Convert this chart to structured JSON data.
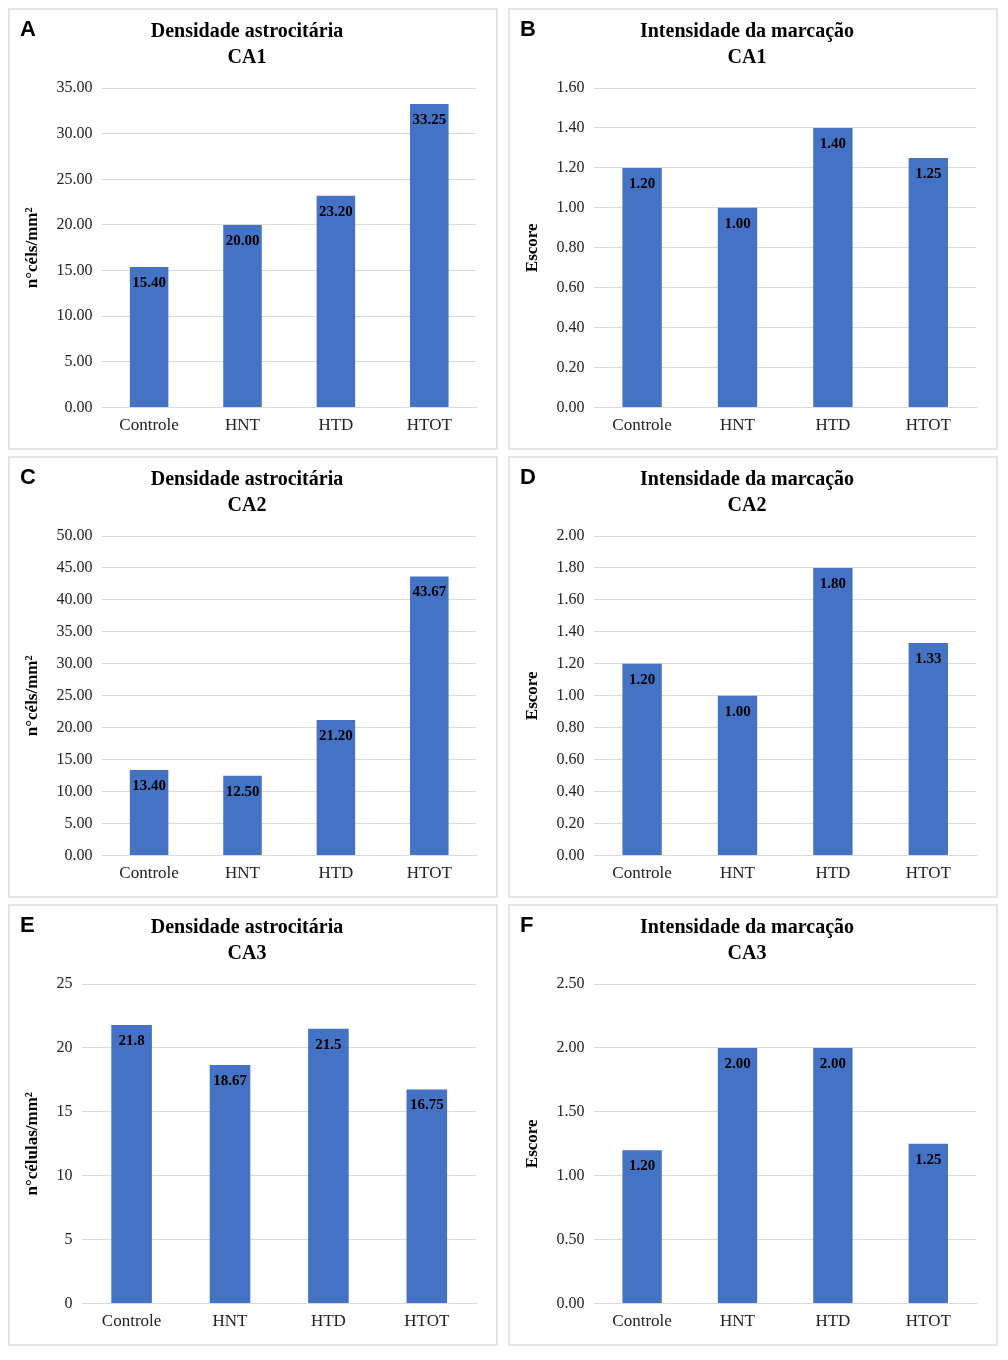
{
  "chart_data": [
    {
      "type": "bar",
      "title": "Densidade astrocitária",
      "subtitle": "CA1",
      "ylabel": "n°céls/mm²",
      "annotations": [
        "A"
      ],
      "categories": [
        "Controle",
        "HNT",
        "HTD",
        "HTOT"
      ],
      "values": [
        15.4,
        20.0,
        23.2,
        33.25
      ],
      "value_labels": [
        "15.40",
        "20.00",
        "23.20",
        "33.25"
      ],
      "color": "#4472c4",
      "ylim": [
        0,
        35
      ],
      "yticks": [
        {
          "value": 0,
          "label": "0.00"
        },
        {
          "value": 5,
          "label": "5.00"
        },
        {
          "value": 10,
          "label": "10.00"
        },
        {
          "value": 15,
          "label": "15.00"
        },
        {
          "value": 20,
          "label": "20.00"
        },
        {
          "value": 25,
          "label": "25.00"
        },
        {
          "value": 30,
          "label": "30.00"
        },
        {
          "value": 35,
          "label": "35.00"
        }
      ],
      "grid": "y"
    },
    {
      "type": "bar",
      "title": "Intensidade da marcação",
      "subtitle": "CA1",
      "ylabel": "Escore",
      "annotations": [
        "B"
      ],
      "categories": [
        "Controle",
        "HNT",
        "HTD",
        "HTOT"
      ],
      "values": [
        1.2,
        1.0,
        1.4,
        1.25
      ],
      "value_labels": [
        "1.20",
        "1.00",
        "1.40",
        "1.25"
      ],
      "color": "#4472c4",
      "ylim": [
        0,
        1.6
      ],
      "yticks": [
        {
          "value": 0,
          "label": "0.00"
        },
        {
          "value": 0.2,
          "label": "0.20"
        },
        {
          "value": 0.4,
          "label": "0.40"
        },
        {
          "value": 0.6,
          "label": "0.60"
        },
        {
          "value": 0.8,
          "label": "0.80"
        },
        {
          "value": 1,
          "label": "1.00"
        },
        {
          "value": 1.2,
          "label": "1.20"
        },
        {
          "value": 1.4,
          "label": "1.40"
        },
        {
          "value": 1.6,
          "label": "1.60"
        }
      ],
      "grid": "y"
    },
    {
      "type": "bar",
      "title": "Densidade astrocitária",
      "subtitle": "CA2",
      "ylabel": "n°céls/mm²",
      "annotations": [
        "C"
      ],
      "categories": [
        "Controle",
        "HNT",
        "HTD",
        "HTOT"
      ],
      "values": [
        13.4,
        12.5,
        21.2,
        43.67
      ],
      "value_labels": [
        "13.40",
        "12.50",
        "21.20",
        "43.67"
      ],
      "color": "#4472c4",
      "ylim": [
        0,
        50
      ],
      "yticks": [
        {
          "value": 0,
          "label": "0.00"
        },
        {
          "value": 5,
          "label": "5.00"
        },
        {
          "value": 10,
          "label": "10.00"
        },
        {
          "value": 15,
          "label": "15.00"
        },
        {
          "value": 20,
          "label": "20.00"
        },
        {
          "value": 25,
          "label": "25.00"
        },
        {
          "value": 30,
          "label": "30.00"
        },
        {
          "value": 35,
          "label": "35.00"
        },
        {
          "value": 40,
          "label": "40.00"
        },
        {
          "value": 45,
          "label": "45.00"
        },
        {
          "value": 50,
          "label": "50.00"
        }
      ],
      "grid": "y"
    },
    {
      "type": "bar",
      "title": "Intensidade da marcação",
      "subtitle": "CA2",
      "ylabel": "Escore",
      "annotations": [
        "D"
      ],
      "categories": [
        "Controle",
        "HNT",
        "HTD",
        "HTOT"
      ],
      "values": [
        1.2,
        1.0,
        1.8,
        1.33
      ],
      "value_labels": [
        "1.20",
        "1.00",
        "1.80",
        "1.33"
      ],
      "color": "#4472c4",
      "ylim": [
        0,
        2
      ],
      "yticks": [
        {
          "value": 0,
          "label": "0.00"
        },
        {
          "value": 0.2,
          "label": "0.20"
        },
        {
          "value": 0.4,
          "label": "0.40"
        },
        {
          "value": 0.6,
          "label": "0.60"
        },
        {
          "value": 0.8,
          "label": "0.80"
        },
        {
          "value": 1,
          "label": "1.00"
        },
        {
          "value": 1.2,
          "label": "1.20"
        },
        {
          "value": 1.4,
          "label": "1.40"
        },
        {
          "value": 1.6,
          "label": "1.60"
        },
        {
          "value": 1.8,
          "label": "1.80"
        },
        {
          "value": 2,
          "label": "2.00"
        }
      ],
      "grid": "y"
    },
    {
      "type": "bar",
      "title": "Densidade astrocitária",
      "subtitle": "CA3",
      "ylabel": "n°células/mm²",
      "annotations": [
        "E"
      ],
      "categories": [
        "Controle",
        "HNT",
        "HTD",
        "HTOT"
      ],
      "values": [
        21.8,
        18.67,
        21.5,
        16.75
      ],
      "value_labels": [
        "21.8",
        "18.67",
        "21.5",
        "16.75"
      ],
      "color": "#4472c4",
      "ylim": [
        0,
        25
      ],
      "yticks": [
        0,
        5,
        10,
        15,
        20,
        25
      ],
      "grid": "y"
    },
    {
      "type": "bar",
      "title": "Intensidade da marcação",
      "subtitle": "CA3",
      "ylabel": "Escore",
      "annotations": [
        "F"
      ],
      "categories": [
        "Controle",
        "HNT",
        "HTD",
        "HTOT"
      ],
      "values": [
        1.2,
        2.0,
        2.0,
        1.25
      ],
      "value_labels": [
        "1.20",
        "2.00",
        "2.00",
        "1.25"
      ],
      "color": "#4472c4",
      "ylim": [
        0,
        2.5
      ],
      "yticks": [
        {
          "value": 0,
          "label": "0.00"
        },
        {
          "value": 0.5,
          "label": "0.50"
        },
        {
          "value": 1,
          "label": "1.00"
        },
        {
          "value": 1.5,
          "label": "1.50"
        },
        {
          "value": 2,
          "label": "2.00"
        },
        {
          "value": 2.5,
          "label": "2.50"
        }
      ],
      "grid": "y"
    }
  ]
}
